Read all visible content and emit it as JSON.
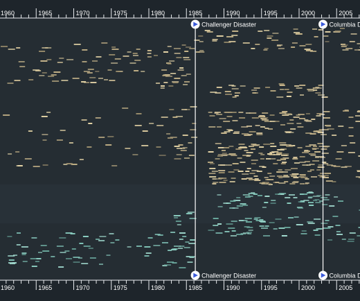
{
  "timeline": {
    "years": [
      "1960",
      "1965",
      "1970",
      "1975",
      "1980",
      "1985",
      "1990",
      "1995",
      "2000",
      "2005"
    ],
    "markers": [
      {
        "label": "Challenger Disaster",
        "year": 1986.0,
        "icon": "play-flag-icon"
      },
      {
        "label": "Columbia Disaster",
        "year": 2003.0,
        "icon": "play-flag-icon"
      }
    ],
    "colors": {
      "background": "#1e252b",
      "band": "#283036",
      "axis": "#ffffff",
      "tan_events": "#d8c79c",
      "teal_events": "#8ccfc2",
      "marker_icon": "#3b5bdb"
    }
  }
}
